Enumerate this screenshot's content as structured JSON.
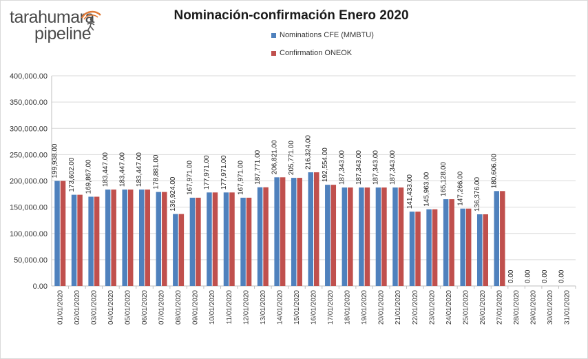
{
  "brand": {
    "line1": "tarahumara",
    "line2": "pipeline"
  },
  "colors": {
    "nominations": "#4f81bd",
    "confirmation": "#c0504d",
    "grid": "#d9d9d9",
    "axis": "#bfbfbf"
  },
  "chart_data": {
    "type": "bar",
    "title": "Nominación-confirmación  Enero 2020",
    "xlabel": "",
    "ylabel": "",
    "ylim": [
      0,
      400000
    ],
    "yticks": [
      "0.00",
      "50,000.00",
      "100,000.00",
      "150,000.00",
      "200,000.00",
      "250,000.00",
      "300,000.00",
      "350,000.00",
      "400,000.00"
    ],
    "ytick_values": [
      0,
      50000,
      100000,
      150000,
      200000,
      250000,
      300000,
      350000,
      400000
    ],
    "grid": true,
    "legend_position": "top-center",
    "categories": [
      "01/01/2020",
      "02/01/2020",
      "03/01/2020",
      "04/01/2020",
      "05/01/2020",
      "06/01/2020",
      "07/01/2020",
      "08/01/2020",
      "09/01/2020",
      "10/01/2020",
      "11/01/2020",
      "12/01/2020",
      "13/01/2020",
      "14/01/2020",
      "15/01/2020",
      "16/01/2020",
      "17/01/2020",
      "18/01/2020",
      "19/01/2020",
      "20/01/2020",
      "21/01/2020",
      "22/01/2020",
      "23/01/2020",
      "24/01/2020",
      "25/01/2020",
      "26/01/2020",
      "27/01/2020",
      "28/01/2020",
      "29/01/2020",
      "30/01/2020",
      "31/01/2020"
    ],
    "series": [
      {
        "name": "Nominations CFE (MMBTU)",
        "values": [
          199938,
          173602,
          169867,
          183447,
          183447,
          183447,
          178881,
          136924,
          167971,
          177971,
          177971,
          167971,
          187771,
          206821,
          205771,
          216324,
          192554,
          187343,
          187343,
          187343,
          187343,
          141433,
          145963,
          165128,
          147266,
          136376,
          180606,
          0,
          0,
          0,
          0
        ]
      },
      {
        "name": "Confirmation ONEOK",
        "values": [
          199938,
          173602,
          169867,
          183447,
          183447,
          183447,
          178881,
          136924,
          167971,
          177971,
          177971,
          167971,
          187771,
          206821,
          205771,
          216324,
          192554,
          187343,
          187343,
          187343,
          187343,
          141433,
          145963,
          165128,
          147266,
          136376,
          180606,
          0,
          0,
          0,
          0
        ]
      }
    ],
    "data_labels": [
      "199,938.00",
      "173,602.00",
      "169,867.00",
      "183,447.00",
      "183,447.00",
      "183,447.00",
      "178,881.00",
      "136,924.00",
      "167,971.00",
      "177,971.00",
      "177,971.00",
      "167,971.00",
      "187,771.00",
      "206,821.00",
      "205,771.00",
      "216,324.00",
      "192,554.00",
      "187,343.00",
      "187,343.00",
      "187,343.00",
      "187,343.00",
      "141,433.00",
      "145,963.00",
      "165,128.00",
      "147,266.00",
      "136,376.00",
      "180,606.00",
      "0.00",
      "0.00",
      "0.00",
      "0.00"
    ]
  }
}
